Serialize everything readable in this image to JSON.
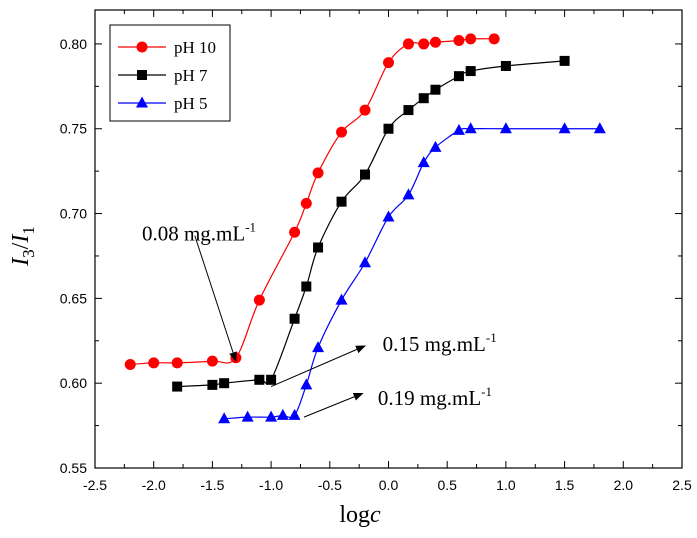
{
  "chart_data": {
    "type": "line",
    "xlabel": {
      "main": "log",
      "italic": "c"
    },
    "ylabel": {
      "base": "I",
      "sub1": "3",
      "slash": "/",
      "base2": "I",
      "sub2": "1"
    },
    "xlim": [
      -2.5,
      2.5
    ],
    "ylim": [
      0.55,
      0.82
    ],
    "xticks": [
      -2.5,
      -2.0,
      -1.5,
      -1.0,
      -0.5,
      0.0,
      0.5,
      1.0,
      1.5,
      2.0,
      2.5
    ],
    "yticks": [
      0.55,
      0.6,
      0.65,
      0.7,
      0.75,
      0.8
    ],
    "legend_position": "top-left",
    "grid": false,
    "series": [
      {
        "name": "pH 10",
        "color": "#ff0000",
        "marker": "circle",
        "x": [
          -2.2,
          -2.0,
          -1.8,
          -1.5,
          -1.3,
          -1.1,
          -0.8,
          -0.7,
          -0.6,
          -0.4,
          -0.2,
          0.0,
          0.17,
          0.3,
          0.4,
          0.6,
          0.7,
          0.9
        ],
        "y": [
          0.611,
          0.612,
          0.612,
          0.613,
          0.615,
          0.649,
          0.689,
          0.706,
          0.724,
          0.748,
          0.761,
          0.789,
          0.8,
          0.8,
          0.801,
          0.802,
          0.803,
          0.803
        ]
      },
      {
        "name": "pH 7",
        "color": "#000000",
        "marker": "square",
        "x": [
          -1.8,
          -1.5,
          -1.4,
          -1.1,
          -1.0,
          -0.8,
          -0.7,
          -0.6,
          -0.4,
          -0.2,
          0.0,
          0.17,
          0.3,
          0.4,
          0.6,
          0.7,
          1.0,
          1.5
        ],
        "y": [
          0.598,
          0.599,
          0.6,
          0.602,
          0.602,
          0.638,
          0.657,
          0.68,
          0.707,
          0.723,
          0.75,
          0.761,
          0.768,
          0.773,
          0.781,
          0.784,
          0.787,
          0.79
        ]
      },
      {
        "name": "pH 5",
        "color": "#0000ff",
        "marker": "triangle",
        "x": [
          -1.4,
          -1.2,
          -1.0,
          -0.9,
          -0.8,
          -0.7,
          -0.6,
          -0.4,
          -0.2,
          0.0,
          0.17,
          0.3,
          0.4,
          0.6,
          0.7,
          1.0,
          1.5,
          1.8
        ],
        "y": [
          0.579,
          0.58,
          0.58,
          0.581,
          0.581,
          0.599,
          0.621,
          0.649,
          0.671,
          0.698,
          0.711,
          0.73,
          0.739,
          0.749,
          0.75,
          0.75,
          0.75,
          0.75
        ]
      }
    ],
    "annotations": [
      {
        "text": "0.08 mg.mL",
        "sup": "-1",
        "arrow_from": [
          -1.65,
          0.687
        ],
        "arrow_to": [
          -1.3,
          0.613
        ],
        "text_at": [
          -2.1,
          0.684
        ]
      },
      {
        "text": "0.15 mg.mL",
        "sup": "-1",
        "arrow_from": [
          -1.0,
          0.598
        ],
        "arrow_to": [
          -0.2,
          0.622
        ],
        "text_at": [
          -0.05,
          0.619
        ]
      },
      {
        "text": "0.19 mg.mL",
        "sup": "-1",
        "arrow_from": [
          -0.72,
          0.58
        ],
        "arrow_to": [
          -0.22,
          0.594
        ],
        "text_at": [
          -0.09,
          0.587
        ]
      }
    ]
  }
}
